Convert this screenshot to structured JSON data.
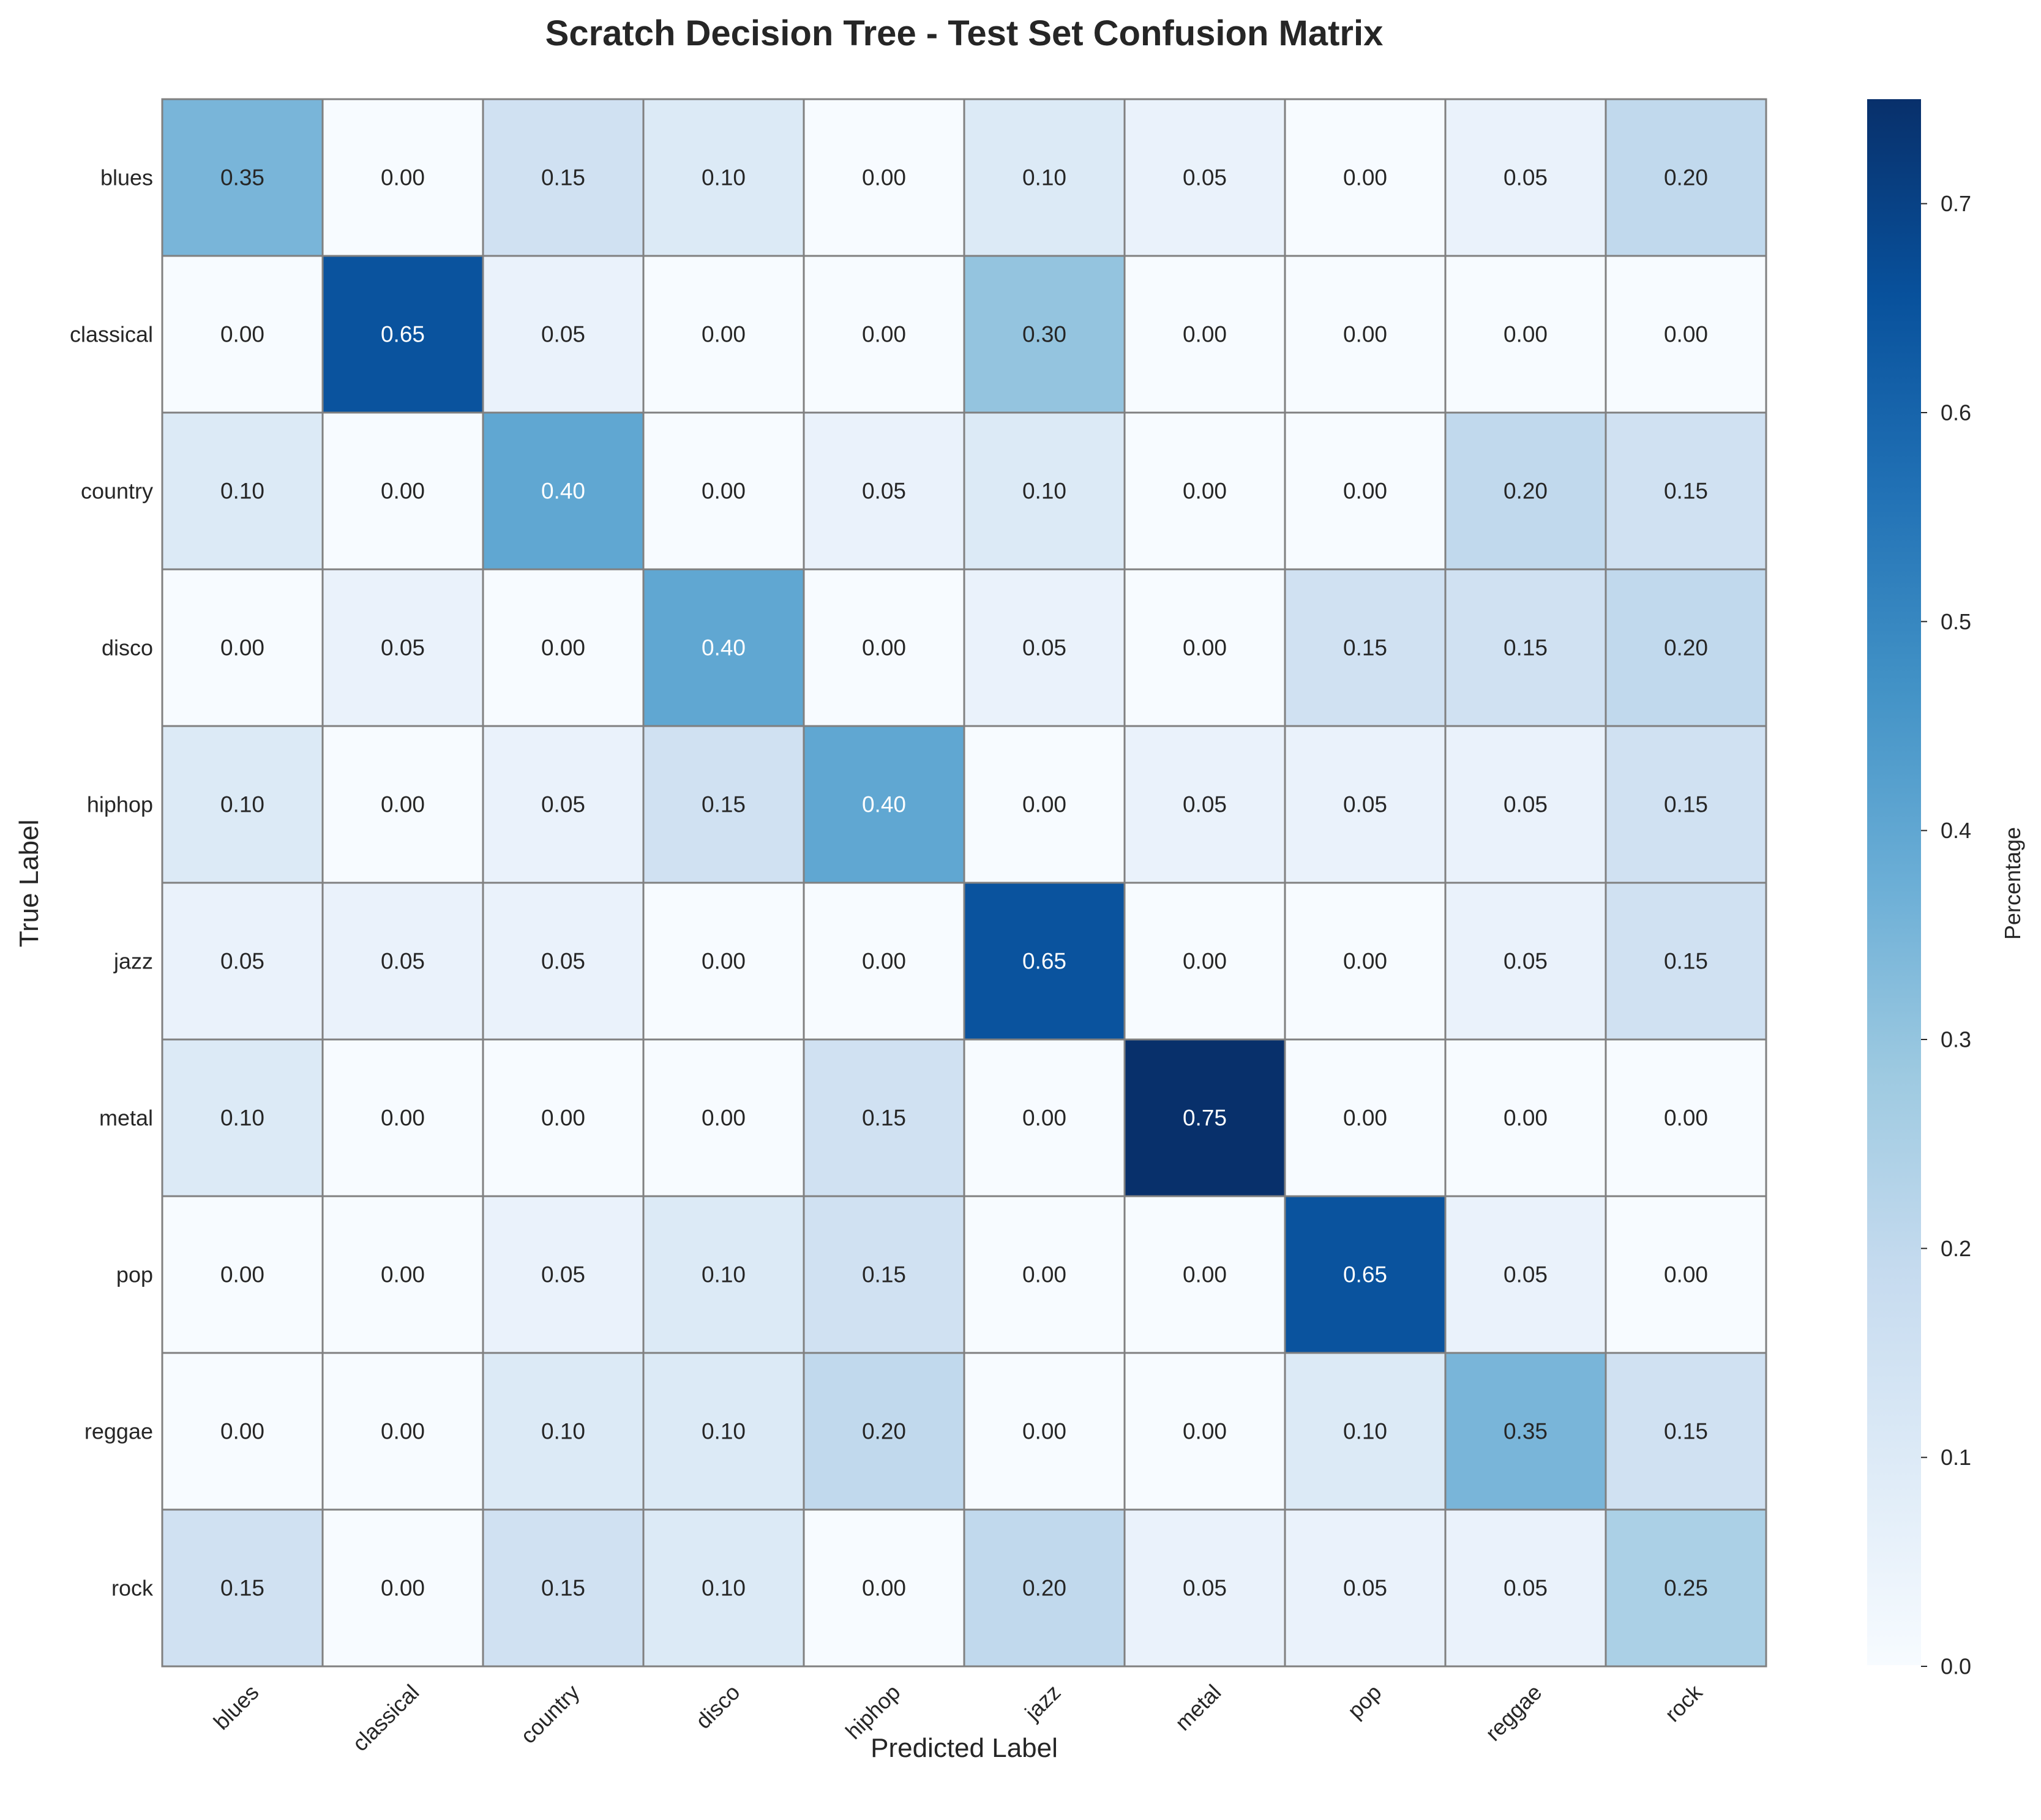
{
  "chart_data": {
    "type": "heatmap",
    "title": "Scratch Decision Tree - Test Set Confusion Matrix",
    "xlabel": "Predicted Label",
    "ylabel": "True Label",
    "x_categories": [
      "blues",
      "classical",
      "country",
      "disco",
      "hiphop",
      "jazz",
      "metal",
      "pop",
      "reggae",
      "rock"
    ],
    "y_categories": [
      "blues",
      "classical",
      "country",
      "disco",
      "hiphop",
      "jazz",
      "metal",
      "pop",
      "reggae",
      "rock"
    ],
    "values": [
      [
        0.35,
        0.0,
        0.15,
        0.1,
        0.0,
        0.1,
        0.05,
        0.0,
        0.05,
        0.2
      ],
      [
        0.0,
        0.65,
        0.05,
        0.0,
        0.0,
        0.3,
        0.0,
        0.0,
        0.0,
        0.0
      ],
      [
        0.1,
        0.0,
        0.4,
        0.0,
        0.05,
        0.1,
        0.0,
        0.0,
        0.2,
        0.15
      ],
      [
        0.0,
        0.05,
        0.0,
        0.4,
        0.0,
        0.05,
        0.0,
        0.15,
        0.15,
        0.2
      ],
      [
        0.1,
        0.0,
        0.05,
        0.15,
        0.4,
        0.0,
        0.05,
        0.05,
        0.05,
        0.15
      ],
      [
        0.05,
        0.05,
        0.05,
        0.0,
        0.0,
        0.65,
        0.0,
        0.0,
        0.05,
        0.15
      ],
      [
        0.1,
        0.0,
        0.0,
        0.0,
        0.15,
        0.0,
        0.75,
        0.0,
        0.0,
        0.0
      ],
      [
        0.0,
        0.0,
        0.05,
        0.1,
        0.15,
        0.0,
        0.0,
        0.65,
        0.05,
        0.0
      ],
      [
        0.0,
        0.0,
        0.1,
        0.1,
        0.2,
        0.0,
        0.0,
        0.1,
        0.35,
        0.15
      ],
      [
        0.15,
        0.0,
        0.15,
        0.1,
        0.0,
        0.2,
        0.05,
        0.05,
        0.05,
        0.25
      ]
    ],
    "value_format": "0.00",
    "colormap": "Blues",
    "colormap_stops": [
      "#f7fbff",
      "#deebf7",
      "#c6dbef",
      "#9ecae1",
      "#6baed6",
      "#4292c6",
      "#2171b5",
      "#08519c",
      "#08306b"
    ],
    "cell_border_color": "#808080",
    "colorbar": {
      "label": "Percentage",
      "vmin": 0.0,
      "vmax": 0.75,
      "ticks": [
        "0.0",
        "0.1",
        "0.2",
        "0.3",
        "0.4",
        "0.5",
        "0.6",
        "0.7"
      ]
    },
    "grid": false
  }
}
